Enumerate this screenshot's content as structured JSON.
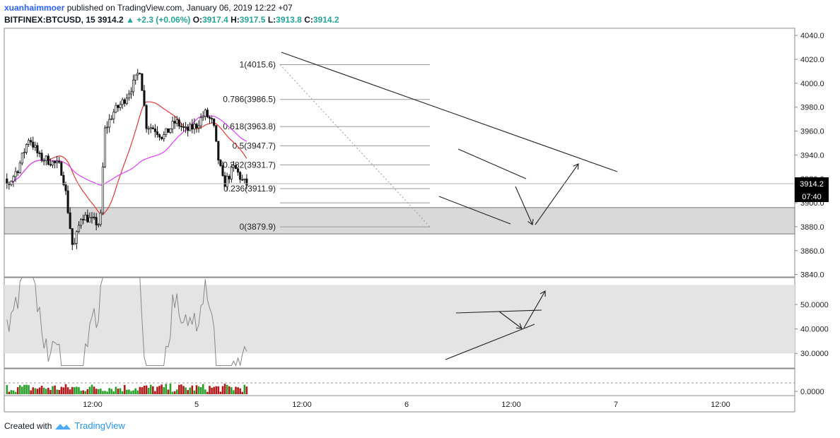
{
  "header": {
    "author": "xuanhaimmoer",
    "published": "published on TradingView.com, January 06, 2019 12:22 +07",
    "symbol": "BITFINEX:BTCUSD, 15",
    "last": "3914.2",
    "change": "+2.3 (+0.06%)",
    "o_label": "O:",
    "o": "3917.4",
    "h_label": "H:",
    "h": "3917.5",
    "l_label": "L:",
    "l": "3913.8",
    "c_label": "C:",
    "c": "3914.2"
  },
  "footer": {
    "created": "Created with",
    "brand": "TradingView"
  },
  "colors": {
    "up": "#2ba02b",
    "down": "#b31b1b",
    "ma_fast": "#e53935",
    "ma_slow": "#e040fb",
    "zone": "#d9d9d9"
  },
  "price_tag": {
    "value": "3914.2",
    "countdown": "07:40"
  },
  "chart_data": [
    {
      "type": "candlestick",
      "title": "BITFINEX:BTCUSD, 15",
      "y_axis_ticks": [
        "4040.0",
        "4020.0",
        "4000.0",
        "3980.0",
        "3960.0",
        "3940.0",
        "3920.0",
        "3900.0",
        "3880.0",
        "3860.0",
        "3840.0"
      ],
      "ylim": [
        3838,
        4046
      ],
      "x_axis_ticks": [
        "12:00",
        "5",
        "12:00",
        "6",
        "12:00",
        "7",
        "12:00"
      ],
      "fib_levels": [
        {
          "label": "1(4015.6)",
          "value": 4015.6
        },
        {
          "label": "0.786(3986.5)",
          "value": 3986.5
        },
        {
          "label": "0.618(3963.8)",
          "value": 3963.8
        },
        {
          "label": "0.5(3947.7)",
          "value": 3947.7
        },
        {
          "label": "0.382(3931.7)",
          "value": 3931.7
        },
        {
          "label": "0.236(3911.9)",
          "value": 3911.9
        },
        {
          "label": "",
          "value": 3900
        },
        {
          "label": "0(3879.9)",
          "value": 3879.9
        }
      ],
      "support_zone": [
        3874,
        3896
      ],
      "approx_series": {
        "name": "",
        "points": [
          [
            0.0,
            3928
          ],
          [
            0.05,
            3920
          ],
          [
            0.1,
            3915
          ],
          [
            0.15,
            3930
          ],
          [
            0.2,
            3955
          ],
          [
            0.25,
            3938
          ],
          [
            0.3,
            3935
          ],
          [
            0.35,
            3930
          ],
          [
            0.37,
            3915
          ],
          [
            0.41,
            3860
          ],
          [
            0.45,
            3890
          ],
          [
            0.5,
            3885
          ],
          [
            0.54,
            3882
          ],
          [
            0.56,
            3960
          ],
          [
            0.6,
            3975
          ],
          [
            0.65,
            3985
          ],
          [
            0.7,
            4000
          ],
          [
            0.73,
            4012
          ],
          [
            0.76,
            3965
          ],
          [
            0.8,
            3962
          ],
          [
            0.84,
            3955
          ],
          [
            0.9,
            3968
          ],
          [
            0.95,
            3960
          ],
          [
            1.0,
            3965
          ],
          [
            1.04,
            3975
          ],
          [
            1.08,
            3966
          ],
          [
            1.1,
            3940
          ],
          [
            1.13,
            3915
          ],
          [
            1.18,
            3930
          ],
          [
            1.22,
            3918
          ],
          [
            1.25,
            3914
          ]
        ],
        "x_units": "days_from_Jan04_00:00"
      },
      "moving_averages": [
        {
          "name": "",
          "color": "#e53935"
        },
        {
          "name": "",
          "color": "#e040fb"
        }
      ]
    },
    {
      "type": "line",
      "title": "",
      "y_axis_ticks": [
        "50.0000",
        "40.0000",
        "30.0000"
      ],
      "ylim": [
        24,
        61
      ],
      "band": [
        30,
        58
      ]
    },
    {
      "type": "bar",
      "title": "",
      "y_axis_ticks": [
        "0.0000"
      ]
    }
  ]
}
